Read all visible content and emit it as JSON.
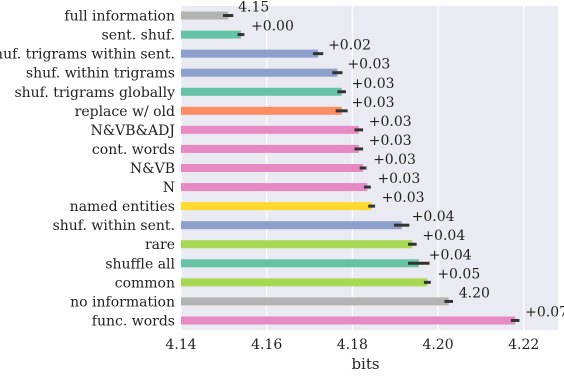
{
  "chart_data": {
    "type": "bar",
    "orientation": "horizontal",
    "xlabel": "bits",
    "ylabel": "",
    "title": "",
    "xlim": [
      4.14,
      4.228
    ],
    "xticks": [
      4.14,
      4.16,
      4.18,
      4.2,
      4.22
    ],
    "xtick_labels": [
      "4.14",
      "4.16",
      "4.18",
      "4.20",
      "4.22"
    ],
    "grid": "vertical",
    "background": "#eaeaf2",
    "categories": [
      "full information",
      "sent. shuf.",
      "shuf. trigrams within sent.",
      "shuf. within trigrams",
      "shuf. trigrams globally",
      "replace w/ old",
      "N&VB&ADJ",
      "cont. words",
      "N&VB",
      "N",
      "named entities",
      "shuf. within sent.",
      "rare",
      "shuffle all",
      "common",
      "no information",
      "func. words"
    ],
    "values": [
      4.151,
      4.154,
      4.172,
      4.1765,
      4.1775,
      4.1775,
      4.1815,
      4.1815,
      4.1825,
      4.1835,
      4.1845,
      4.1915,
      4.194,
      4.1955,
      4.1975,
      4.2025,
      4.218
    ],
    "errors": [
      0.0012,
      0.0008,
      0.0012,
      0.0012,
      0.001,
      0.0014,
      0.001,
      0.001,
      0.0008,
      0.0008,
      0.0008,
      0.0018,
      0.001,
      0.0025,
      0.0008,
      0.001,
      0.001
    ],
    "annotations": [
      "4.15",
      "+0.00",
      "+0.02",
      "+0.03",
      "+0.03",
      "+0.03",
      "+0.03",
      "+0.03",
      "+0.03",
      "+0.03",
      "+0.03",
      "+0.04",
      "+0.04",
      "+0.04",
      "+0.05",
      "4.20",
      "+0.07"
    ],
    "colors": [
      "#b3b3b3",
      "#66c2a5",
      "#8da0cb",
      "#8da0cb",
      "#66c2a5",
      "#fc8d62",
      "#e78ac3",
      "#e78ac3",
      "#e78ac3",
      "#e78ac3",
      "#ffd92f",
      "#8da0cb",
      "#a6d854",
      "#66c2a5",
      "#a6d854",
      "#b3b3b3",
      "#e78ac3"
    ],
    "error_bar_color": "#333333",
    "legend": "none"
  }
}
